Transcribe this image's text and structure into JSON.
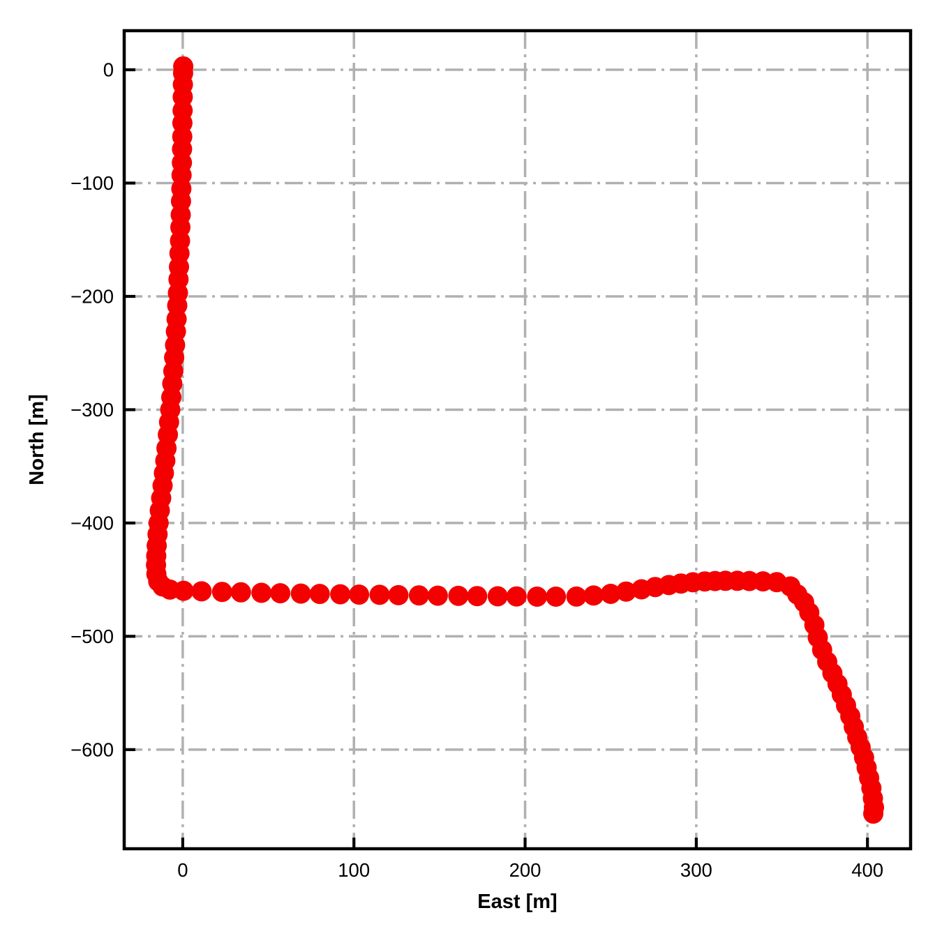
{
  "figure": {
    "background_color": "#ffffff",
    "spine_color": "#000000",
    "grid_color": "#b0b0b0",
    "grid_style": "dash-dot"
  },
  "chart_data": {
    "type": "scatter",
    "title": "",
    "xlabel": "East [m]",
    "ylabel": "North [m]",
    "xlim": [
      -34.2,
      425.2
    ],
    "ylim": [
      -687.5,
      34.5
    ],
    "grid": true,
    "legend": false,
    "xticks": [
      {
        "value": 0,
        "label": "0"
      },
      {
        "value": 100,
        "label": "100"
      },
      {
        "value": 200,
        "label": "200"
      },
      {
        "value": 300,
        "label": "300"
      },
      {
        "value": 400,
        "label": "400"
      }
    ],
    "yticks": [
      {
        "value": 0,
        "label": "0"
      },
      {
        "value": -100,
        "label": "−100"
      },
      {
        "value": -200,
        "label": "−200"
      },
      {
        "value": -300,
        "label": "−300"
      },
      {
        "value": -400,
        "label": "−400"
      },
      {
        "value": -500,
        "label": "−500"
      },
      {
        "value": -600,
        "label": "−600"
      }
    ],
    "series": [
      {
        "name": "trajectory",
        "marker": {
          "shape": "circle",
          "color": "#f40000",
          "radius_px": 14.5
        },
        "x": [
          0.3,
          0.2,
          0.1,
          0.0,
          -0.1,
          -0.2,
          -0.3,
          -0.4,
          -0.5,
          -0.7,
          -0.8,
          -1.0,
          -1.2,
          -1.4,
          -1.6,
          -1.9,
          -2.2,
          -2.5,
          -2.8,
          -3.2,
          -3.6,
          -4.0,
          -4.5,
          -5.0,
          -5.5,
          -6.1,
          -6.7,
          -7.3,
          -8.0,
          -8.7,
          -9.5,
          -10.2,
          -11.0,
          -11.8,
          -12.6,
          -13.4,
          -14.1,
          -14.7,
          -15.2,
          -15.5,
          -15.6,
          -15.4,
          -14.3,
          -11.8,
          -7.5,
          0.5,
          11,
          23,
          34,
          46,
          57,
          69,
          80,
          92,
          103,
          115,
          126,
          138,
          149,
          161,
          172,
          184,
          195,
          207,
          218,
          230,
          240,
          250,
          259,
          268,
          276,
          284,
          291,
          298,
          305,
          311,
          317,
          324,
          331,
          339,
          347,
          355,
          359,
          363,
          366,
          369,
          371,
          373.5,
          376.5,
          379.5,
          382.5,
          385,
          387.5,
          390,
          392,
          394,
          396,
          398,
          399.5,
          401,
          402.3,
          403.2,
          403.8,
          403.4
        ],
        "y": [
          3,
          -3,
          -13,
          -24,
          -36,
          -47,
          -59,
          -70,
          -82,
          -93,
          -105,
          -116,
          -128,
          -139,
          -151,
          -162,
          -174,
          -185,
          -197,
          -208,
          -220,
          -231,
          -243,
          -254,
          -266,
          -277,
          -289,
          -300,
          -311,
          -322,
          -334,
          -345,
          -356,
          -367,
          -378,
          -389,
          -400,
          -410,
          -420,
          -429,
          -437,
          -445,
          -451.5,
          -456,
          -458.8,
          -459.8,
          -460.3,
          -460.8,
          -461.2,
          -461.6,
          -462,
          -462.3,
          -462.6,
          -462.9,
          -463.2,
          -463.4,
          -463.7,
          -463.9,
          -464.1,
          -464.3,
          -464.5,
          -464.7,
          -464.8,
          -465,
          -465,
          -464.9,
          -464,
          -462.5,
          -460.5,
          -458.5,
          -456.5,
          -454.8,
          -453.4,
          -452.3,
          -451.6,
          -451.2,
          -451,
          -451,
          -451.2,
          -451.5,
          -452.2,
          -456,
          -463,
          -470,
          -479,
          -490,
          -501,
          -512,
          -522.5,
          -532.5,
          -542,
          -551.5,
          -561,
          -570.5,
          -580,
          -589,
          -598,
          -607,
          -616,
          -625,
          -634,
          -643,
          -651,
          -656.5
        ]
      }
    ]
  }
}
